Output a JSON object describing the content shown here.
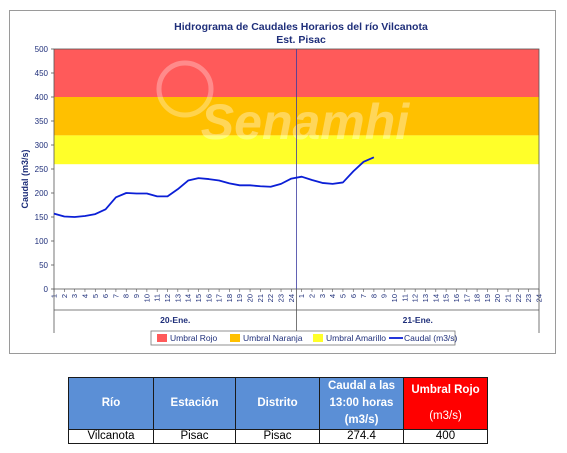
{
  "chart_data": {
    "type": "line",
    "title": "Hidrograma de Caudales Horarios del río Vilcanota",
    "subtitle": "Est. Pisac",
    "ylabel": "Caudal  (m3/s)",
    "ylim": [
      0,
      500
    ],
    "yticks": [
      "0",
      "50",
      "100",
      "150",
      "200",
      "250",
      "300",
      "350",
      "400",
      "450",
      "500"
    ],
    "xticks": [
      "1",
      "2",
      "3",
      "4",
      "5",
      "6",
      "7",
      "8",
      "9",
      "10",
      "11",
      "12",
      "13",
      "14",
      "15",
      "16",
      "17",
      "18",
      "19",
      "20",
      "21",
      "22",
      "23",
      "24",
      "1",
      "2",
      "3",
      "4",
      "5",
      "6",
      "7",
      "8",
      "9",
      "10",
      "11",
      "12",
      "13",
      "14",
      "15",
      "16",
      "17",
      "18",
      "19",
      "20",
      "21",
      "22",
      "23",
      "24"
    ],
    "days": [
      "20-Ene.",
      "21-Ene."
    ],
    "watermark": "Senamhi",
    "bands": [
      {
        "name": "Umbral Rojo",
        "from": 400,
        "to": 500,
        "color": "#ff5a5a"
      },
      {
        "name": "Umbral Naranja",
        "from": 320,
        "to": 400,
        "color": "#ffc000"
      },
      {
        "name": "Umbral Amarillo",
        "from": 260,
        "to": 320,
        "color": "#ffff29"
      }
    ],
    "series": [
      {
        "name": "Caudal (m3/s)",
        "color": "#0b1fd6",
        "values": [
          157,
          151,
          150,
          152,
          156,
          166,
          191,
          200,
          199,
          199,
          193,
          193,
          208,
          226,
          231,
          229,
          226,
          220,
          216,
          216,
          214,
          213,
          219,
          230,
          234,
          227,
          221,
          219,
          222,
          245,
          265,
          274.4
        ]
      }
    ],
    "legend": {
      "position": "bottom",
      "labels": [
        "Umbral Rojo",
        "Umbral Naranja",
        "Umbral Amarillo",
        "Caudal (m3/s)"
      ]
    }
  },
  "table": {
    "headers": {
      "rio": "Río",
      "estacion": "Estación",
      "distrito": "Distrito",
      "caudal_line1": "Caudal a las",
      "caudal_line2": "13:00 horas",
      "caudal_line3": "(m3/s)",
      "umbral_line1": "Umbral Rojo",
      "umbral_line2": "(m3/s)"
    },
    "row": {
      "rio": "Vilcanota",
      "estacion": "Pisac",
      "distrito": "Pisac",
      "caudal": "274.4",
      "umbral": "400"
    },
    "colors": {
      "header": "#5b8fd6",
      "umbral_header": "#ff0000"
    }
  }
}
